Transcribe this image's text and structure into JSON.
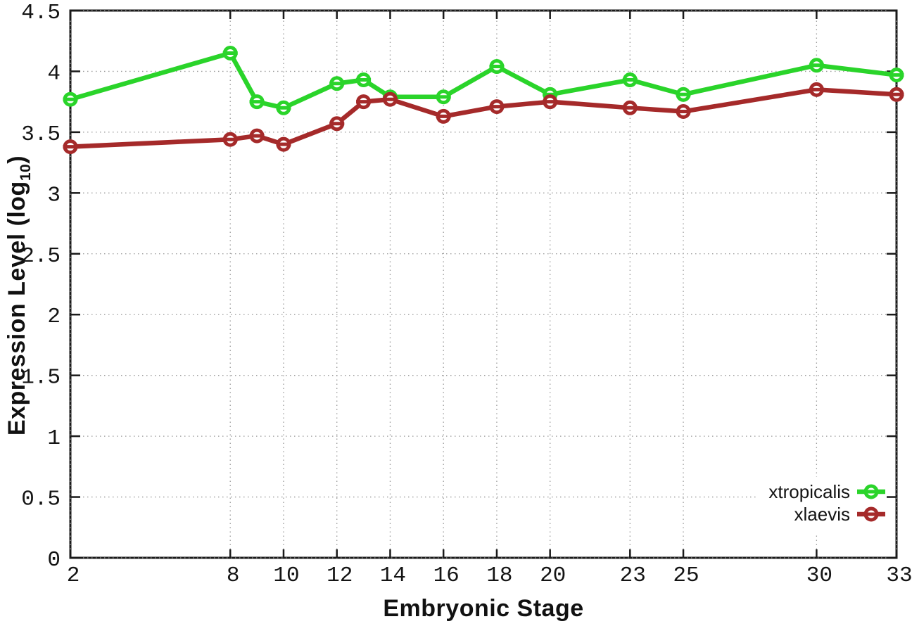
{
  "chart_data": {
    "type": "line",
    "title": "",
    "xlabel": "Embryonic Stage",
    "ylabel": "Expression Level (log10)",
    "ylabel_parts": {
      "main": "Expression Level (log",
      "sub": "10",
      "close": ")"
    },
    "xlim": [
      2,
      33
    ],
    "ylim": [
      0,
      4.5
    ],
    "x_ticks": [
      2,
      8,
      10,
      12,
      14,
      16,
      18,
      20,
      23,
      25,
      30,
      33
    ],
    "y_ticks": [
      0,
      0.5,
      1,
      1.5,
      2,
      2.5,
      3,
      3.5,
      4,
      4.5
    ],
    "grid": true,
    "legend_position": "bottom-right",
    "marker": "open-circle-with-hline",
    "x": [
      2,
      8,
      9,
      10,
      12,
      13,
      14,
      16,
      18,
      20,
      23,
      25,
      30,
      33
    ],
    "series": [
      {
        "name": "xtropicalis",
        "color": "#2ad42a",
        "values": [
          3.77,
          4.15,
          3.75,
          3.7,
          3.9,
          3.93,
          3.79,
          3.79,
          4.04,
          3.81,
          3.93,
          3.81,
          4.05,
          3.97
        ]
      },
      {
        "name": "xlaevis",
        "color": "#a52a2a",
        "values": [
          3.38,
          3.44,
          3.47,
          3.4,
          3.57,
          3.75,
          3.77,
          3.63,
          3.71,
          3.75,
          3.7,
          3.67,
          3.85,
          3.81
        ]
      }
    ]
  },
  "colors": {
    "background": "#ffffff",
    "border": "#1a1a1a",
    "grid": "#9a9a9a",
    "text": "#141414"
  }
}
